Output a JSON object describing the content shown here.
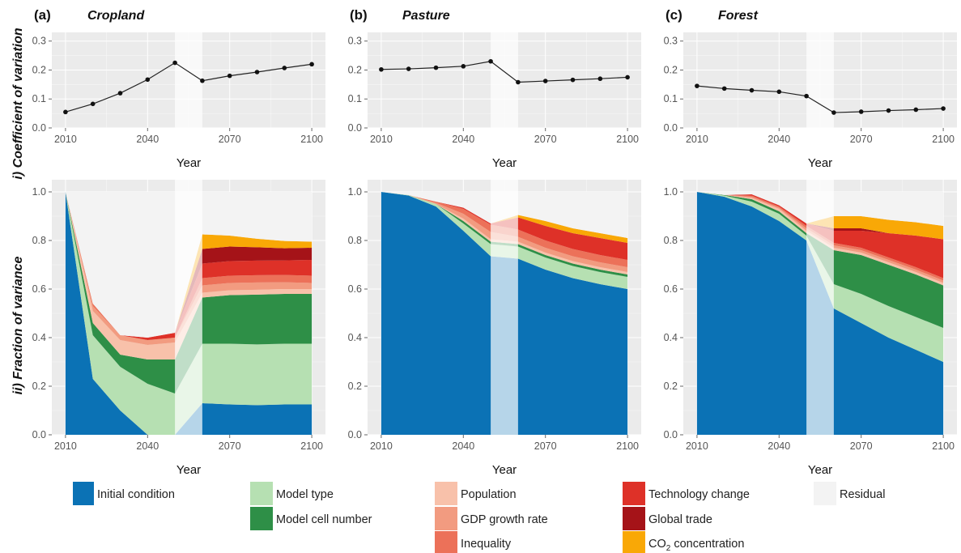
{
  "row_labels": {
    "top": "i) Coefficient of variation",
    "bottom": "ii) Fraction of variance"
  },
  "colors": {
    "initial_condition": "#0b72b5",
    "model_type": "#b6e0b2",
    "model_cell_number": "#2e8f47",
    "population": "#f8c1aa",
    "gdp_growth_rate": "#f29b80",
    "inequality": "#ec7159",
    "technology_change": "#de3128",
    "global_trade": "#a51318",
    "co2_concentration": "#f9a806",
    "residual": "#f3f3f3",
    "panel_bg": "#ebebeb",
    "grid": "#ffffff",
    "shade": "#ffffff"
  },
  "legend": [
    {
      "key": "initial_condition",
      "label": "Initial condition"
    },
    {
      "key": "model_type",
      "label": "Model type"
    },
    {
      "key": "model_cell_number",
      "label": "Model cell number"
    },
    {
      "key": "population",
      "label": "Population"
    },
    {
      "key": "gdp_growth_rate",
      "label": "GDP growth rate"
    },
    {
      "key": "inequality",
      "label": "Inequality"
    },
    {
      "key": "technology_change",
      "label": "Technology change"
    },
    {
      "key": "global_trade",
      "label": "Global trade"
    },
    {
      "key": "co2_concentration",
      "label": "CO2 concentration"
    },
    {
      "key": "residual",
      "label": "Residual"
    }
  ],
  "chart_data": [
    {
      "type": "line",
      "panel": "(a)",
      "title": "Cropland",
      "xlabel": "Year",
      "ylabel": "Coefficient of variation",
      "x": [
        2010,
        2020,
        2030,
        2040,
        2050,
        2060,
        2070,
        2080,
        2090,
        2100
      ],
      "values": [
        0.055,
        0.083,
        0.12,
        0.167,
        0.225,
        0.163,
        0.18,
        0.193,
        0.207,
        0.22
      ],
      "ylim": [
        0,
        0.33
      ],
      "yticks": [
        "0.0",
        "0.1",
        "0.2",
        "0.3"
      ],
      "xticks": [
        "2010",
        "2040",
        "2070",
        "2100"
      ],
      "shaded_interval": [
        2050,
        2060
      ],
      "grid": true
    },
    {
      "type": "line",
      "panel": "(b)",
      "title": "Pasture",
      "xlabel": "Year",
      "ylabel": "Coefficient of variation",
      "x": [
        2010,
        2020,
        2030,
        2040,
        2050,
        2060,
        2070,
        2080,
        2090,
        2100
      ],
      "values": [
        0.202,
        0.204,
        0.208,
        0.213,
        0.23,
        0.158,
        0.162,
        0.166,
        0.17,
        0.175
      ],
      "ylim": [
        0,
        0.33
      ],
      "yticks": [
        "0.0",
        "0.1",
        "0.2",
        "0.3"
      ],
      "xticks": [
        "2010",
        "2040",
        "2070",
        "2100"
      ],
      "shaded_interval": [
        2050,
        2060
      ],
      "grid": true
    },
    {
      "type": "line",
      "panel": "(c)",
      "title": "Forest",
      "xlabel": "Year",
      "ylabel": "Coefficient of variation",
      "x": [
        2010,
        2020,
        2030,
        2040,
        2050,
        2060,
        2070,
        2080,
        2090,
        2100
      ],
      "values": [
        0.145,
        0.136,
        0.13,
        0.125,
        0.11,
        0.053,
        0.056,
        0.06,
        0.063,
        0.067
      ],
      "ylim": [
        0,
        0.33
      ],
      "yticks": [
        "0.0",
        "0.1",
        "0.2",
        "0.3"
      ],
      "xticks": [
        "2010",
        "2040",
        "2070",
        "2100"
      ],
      "shaded_interval": [
        2050,
        2060
      ],
      "grid": true
    },
    {
      "type": "area",
      "panel": "(a)",
      "title": "Cropland",
      "xlabel": "Year",
      "ylabel": "Fraction of variance",
      "x": [
        2010,
        2020,
        2030,
        2040,
        2050,
        2060,
        2070,
        2080,
        2090,
        2100
      ],
      "ylim": [
        0,
        1.05
      ],
      "yticks": [
        "0.0",
        "0.2",
        "0.4",
        "0.6",
        "0.8",
        "1.0"
      ],
      "xticks": [
        "2010",
        "2040",
        "2070",
        "2100"
      ],
      "shaded_interval": [
        2050,
        2060
      ],
      "series": [
        {
          "key": "initial_condition",
          "values": [
            1.0,
            0.23,
            0.1,
            0.0,
            0.0,
            0.13,
            0.125,
            0.122,
            0.125,
            0.125
          ]
        },
        {
          "key": "model_type",
          "values": [
            0.0,
            0.18,
            0.18,
            0.21,
            0.17,
            0.245,
            0.25,
            0.25,
            0.25,
            0.25
          ]
        },
        {
          "key": "model_cell_number",
          "values": [
            0.0,
            0.05,
            0.05,
            0.1,
            0.14,
            0.19,
            0.2,
            0.205,
            0.205,
            0.205
          ]
        },
        {
          "key": "population",
          "values": [
            0.0,
            0.05,
            0.06,
            0.06,
            0.07,
            0.02,
            0.02,
            0.02,
            0.02,
            0.02
          ]
        },
        {
          "key": "gdp_growth_rate",
          "values": [
            0.0,
            0.02,
            0.02,
            0.02,
            0.02,
            0.03,
            0.03,
            0.03,
            0.028,
            0.025
          ]
        },
        {
          "key": "inequality",
          "values": [
            0.0,
            0.01,
            0.0,
            0.0,
            0.0,
            0.03,
            0.03,
            0.03,
            0.03,
            0.03
          ]
        },
        {
          "key": "technology_change",
          "values": [
            0.0,
            0.0,
            0.0,
            0.01,
            0.02,
            0.06,
            0.06,
            0.06,
            0.06,
            0.065
          ]
        },
        {
          "key": "global_trade",
          "values": [
            0.0,
            0.0,
            0.0,
            0.0,
            0.0,
            0.06,
            0.06,
            0.055,
            0.05,
            0.05
          ]
        },
        {
          "key": "co2_concentration",
          "values": [
            0.0,
            0.0,
            0.0,
            0.0,
            0.0,
            0.06,
            0.045,
            0.035,
            0.03,
            0.025
          ]
        }
      ]
    },
    {
      "type": "area",
      "panel": "(b)",
      "title": "Pasture",
      "xlabel": "Year",
      "ylabel": "Fraction of variance",
      "x": [
        2010,
        2020,
        2030,
        2040,
        2050,
        2060,
        2070,
        2080,
        2090,
        2100
      ],
      "ylim": [
        0,
        1.05
      ],
      "yticks": [
        "0.0",
        "0.2",
        "0.4",
        "0.6",
        "0.8",
        "1.0"
      ],
      "xticks": [
        "2010",
        "2040",
        "2070",
        "2100"
      ],
      "shaded_interval": [
        2050,
        2060
      ],
      "series": [
        {
          "key": "initial_condition",
          "values": [
            1.0,
            0.985,
            0.94,
            0.84,
            0.735,
            0.725,
            0.68,
            0.645,
            0.62,
            0.6
          ]
        },
        {
          "key": "model_type",
          "values": [
            0.0,
            0.002,
            0.01,
            0.03,
            0.05,
            0.05,
            0.05,
            0.05,
            0.05,
            0.05
          ]
        },
        {
          "key": "model_cell_number",
          "values": [
            0.0,
            0.0,
            0.0,
            0.01,
            0.01,
            0.01,
            0.01,
            0.01,
            0.01,
            0.01
          ]
        },
        {
          "key": "population",
          "values": [
            0.0,
            0.0,
            0.0,
            0.01,
            0.01,
            0.01,
            0.01,
            0.01,
            0.01,
            0.01
          ]
        },
        {
          "key": "gdp_growth_rate",
          "values": [
            0.0,
            0.0,
            0.005,
            0.02,
            0.03,
            0.02,
            0.02,
            0.02,
            0.02,
            0.02
          ]
        },
        {
          "key": "inequality",
          "values": [
            0.0,
            0.0,
            0.005,
            0.02,
            0.03,
            0.03,
            0.03,
            0.03,
            0.03,
            0.03
          ]
        },
        {
          "key": "technology_change",
          "values": [
            0.0,
            0.0,
            0.0,
            0.005,
            0.005,
            0.05,
            0.06,
            0.065,
            0.07,
            0.07
          ]
        },
        {
          "key": "global_trade",
          "values": [
            0.0,
            0.0,
            0.0,
            0.0,
            0.0,
            0.0,
            0.0,
            0.0,
            0.0,
            0.0
          ]
        },
        {
          "key": "co2_concentration",
          "values": [
            0.0,
            0.0,
            0.0,
            0.0,
            0.0,
            0.01,
            0.02,
            0.02,
            0.02,
            0.02
          ]
        }
      ]
    },
    {
      "type": "area",
      "panel": "(c)",
      "title": "Forest",
      "xlabel": "Year",
      "ylabel": "Fraction of variance",
      "x": [
        2010,
        2020,
        2030,
        2040,
        2050,
        2060,
        2070,
        2080,
        2090,
        2100
      ],
      "ylim": [
        0,
        1.05
      ],
      "yticks": [
        "0.0",
        "0.2",
        "0.4",
        "0.6",
        "0.8",
        "1.0"
      ],
      "xticks": [
        "2010",
        "2040",
        "2070",
        "2100"
      ],
      "shaded_interval": [
        2050,
        2060
      ],
      "series": [
        {
          "key": "initial_condition",
          "values": [
            1.0,
            0.98,
            0.94,
            0.88,
            0.8,
            0.52,
            0.46,
            0.4,
            0.35,
            0.3
          ]
        },
        {
          "key": "model_type",
          "values": [
            0.0,
            0.005,
            0.02,
            0.03,
            0.02,
            0.1,
            0.12,
            0.13,
            0.135,
            0.14
          ]
        },
        {
          "key": "model_cell_number",
          "values": [
            0.0,
            0.002,
            0.01,
            0.01,
            0.01,
            0.14,
            0.16,
            0.17,
            0.175,
            0.175
          ]
        },
        {
          "key": "population",
          "values": [
            0.0,
            0.0,
            0.005,
            0.01,
            0.01,
            0.01,
            0.01,
            0.01,
            0.01,
            0.01
          ]
        },
        {
          "key": "gdp_growth_rate",
          "values": [
            0.0,
            0.0,
            0.005,
            0.005,
            0.01,
            0.01,
            0.01,
            0.01,
            0.01,
            0.01
          ]
        },
        {
          "key": "inequality",
          "values": [
            0.0,
            0.0,
            0.005,
            0.005,
            0.01,
            0.01,
            0.01,
            0.01,
            0.01,
            0.01
          ]
        },
        {
          "key": "technology_change",
          "values": [
            0.0,
            0.0,
            0.005,
            0.005,
            0.01,
            0.05,
            0.07,
            0.1,
            0.13,
            0.16
          ]
        },
        {
          "key": "global_trade",
          "values": [
            0.0,
            0.0,
            0.0,
            0.0,
            0.0,
            0.01,
            0.01,
            0.0,
            0.0,
            0.0
          ]
        },
        {
          "key": "co2_concentration",
          "values": [
            0.0,
            0.0,
            0.0,
            0.0,
            0.0,
            0.05,
            0.05,
            0.055,
            0.055,
            0.055
          ]
        }
      ]
    }
  ]
}
